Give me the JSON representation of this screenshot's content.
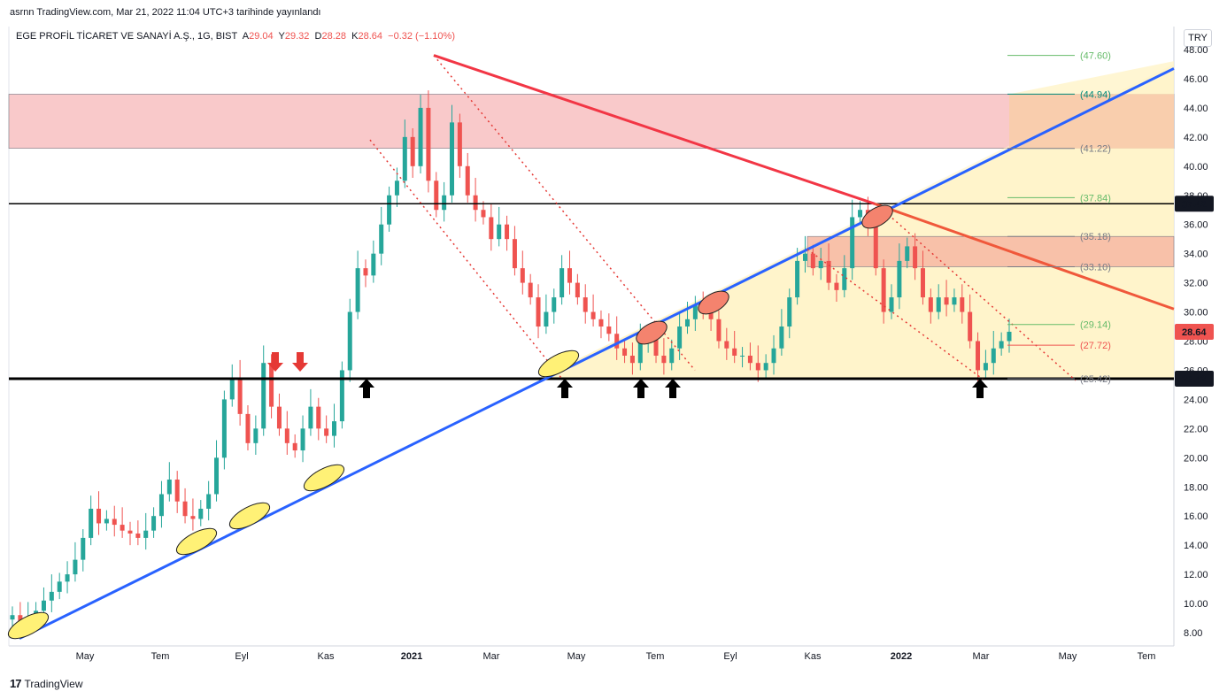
{
  "header": {
    "published": "asrnn TradingView.com, Mar 21, 2022 11:04 UTC+3 tarihinde yayınlandı"
  },
  "legend": {
    "symbol": "EGE PROFİL TİCARET VE SANAYİ A.Ş., 1G, BIST",
    "o_label": "A",
    "o_value": "29.04",
    "h_label": "Y",
    "h_value": "29.32",
    "l_label": "D",
    "l_value": "28.28",
    "c_label": "K",
    "c_value": "28.64",
    "change": "−0.32 (−1.10%)"
  },
  "currency": "TRY",
  "footer": {
    "logo": "17",
    "brand": "TradingView"
  },
  "colors": {
    "up": "#26a69a",
    "down": "#ef5350",
    "trendline_blue": "#2962ff",
    "trendline_red": "#f23645",
    "resistance_zone": "#f8bbbd",
    "support_zone": "#fff3c4"
  },
  "chart_data": {
    "type": "candlestick",
    "x_ticks": [
      "May",
      "Tem",
      "Eyl",
      "Kas",
      "2021",
      "Mar",
      "May",
      "Tem",
      "Eyl",
      "Kas",
      "2022",
      "Mar",
      "May",
      "Tem"
    ],
    "y_ticks": [
      "8.00",
      "10.00",
      "12.00",
      "14.00",
      "16.00",
      "18.00",
      "20.00",
      "22.00",
      "24.00",
      "26.00",
      "28.00",
      "30.00",
      "32.00",
      "34.00",
      "36.00",
      "38.00",
      "40.00",
      "42.00",
      "44.00",
      "46.00",
      "48.00"
    ],
    "ylim": [
      7,
      49
    ],
    "price_close": [
      9.2,
      8.5,
      8.9,
      9.5,
      10.2,
      10.8,
      11.5,
      12.0,
      13.0,
      14.5,
      16.5,
      15.5,
      15.8,
      15.4,
      15.0,
      14.8,
      14.5,
      15.0,
      16.0,
      17.5,
      18.5,
      17.0,
      16.0,
      15.8,
      16.5,
      17.5,
      20.0,
      24.0,
      25.5,
      23.0,
      21.0,
      22.0,
      26.5,
      23.5,
      22.0,
      21.0,
      20.5,
      22.0,
      23.5,
      22.0,
      21.5,
      22.5,
      26.0,
      30.0,
      33.0,
      32.5,
      34.0,
      36.0,
      38.0,
      39.0,
      42.0,
      40.0,
      44.0,
      39.0,
      37.0,
      38.0,
      43.0,
      40.0,
      38.0,
      37.0,
      36.5,
      35.0,
      36.0,
      35.0,
      33.0,
      32.0,
      31.0,
      29.0,
      30.0,
      31.0,
      33.0,
      32.0,
      31.0,
      30.0,
      29.5,
      29.0,
      28.5,
      27.5,
      27.0,
      26.5,
      28.0,
      28.5,
      27.0,
      26.5,
      27.5,
      29.0,
      29.5,
      30.5,
      30.0,
      29.5,
      28.0,
      27.5,
      27.0,
      27.0,
      26.5,
      26.0,
      26.5,
      27.5,
      29.0,
      31.0,
      33.5,
      34.0,
      33.0,
      33.5,
      32.0,
      31.5,
      33.0,
      36.5,
      37.0,
      36.0,
      33.0,
      30.0,
      31.0,
      33.5,
      34.5,
      33.0,
      31.0,
      30.0,
      31.0,
      30.5,
      31.0,
      30.0,
      28.0,
      26.0,
      26.5,
      27.5,
      28.0,
      28.64
    ],
    "levels": [
      {
        "label": "37.42",
        "value": 37.42
      },
      {
        "label": "25.42",
        "value": 25.42
      }
    ],
    "current_price": {
      "label": "28.64",
      "value": 28.64
    },
    "fib_levels": [
      {
        "label": "(47.60)",
        "value": 47.6,
        "color": "#66bb6a"
      },
      {
        "label": "(44.94)",
        "value": 44.94,
        "color": "#00897b"
      },
      {
        "label": "(41.22)",
        "value": 41.22,
        "color": "#787b86"
      },
      {
        "label": "(37.84)",
        "value": 37.84,
        "color": "#66bb6a"
      },
      {
        "label": "(35.18)",
        "value": 35.18,
        "color": "#787b86"
      },
      {
        "label": "(33.10)",
        "value": 33.1,
        "color": "#787b86"
      },
      {
        "label": "(29.14)",
        "value": 29.14,
        "color": "#66bb6a"
      },
      {
        "label": "(27.72)",
        "value": 27.72,
        "color": "#ef5350"
      },
      {
        "label": "(25.42)",
        "value": 25.42,
        "color": "#787b86"
      }
    ],
    "resistance_zone": [
      41.22,
      44.94
    ],
    "mid_zone": [
      33.1,
      35.18
    ]
  }
}
